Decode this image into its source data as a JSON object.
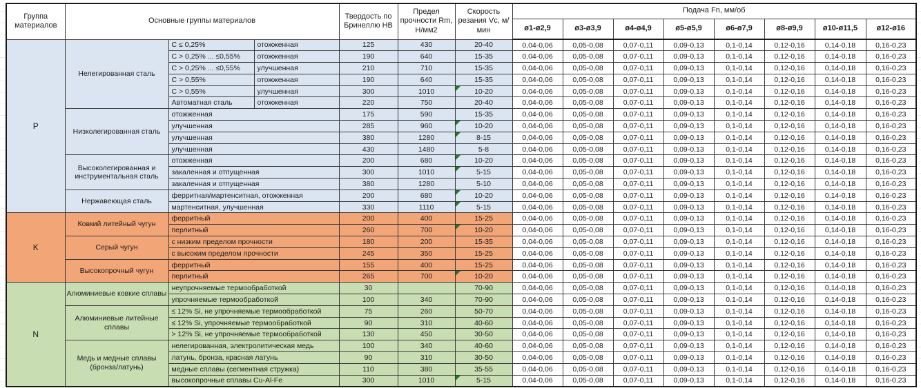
{
  "header": {
    "col_group": "Группа материалов",
    "col_main": "Основные группы материалов",
    "col_hb": "Твердость по Бринеллю HB",
    "col_rm": "Предел прочности Rm, Н/мм2",
    "col_vc": "Скорость резания Vc, м/мин",
    "col_feed": "Подача Fn, мм/об",
    "diameters": [
      "ø1-ø2,9",
      "ø3-ø3,9",
      "ø4-ø4,9",
      "ø5-ø5,9",
      "ø6-ø7,9",
      "ø8-ø9,9",
      "ø10-ø11,5",
      "ø12-ø16"
    ]
  },
  "feed_values_all_rows": [
    "0,04-0,06",
    "0,05-0,08",
    "0,07-0,11",
    "0,09-0,13",
    "0,1-0,14",
    "0,12-0,16",
    "0,14-0,18",
    "0,16-0,23"
  ],
  "colors": {
    "group_p": "#dbe5f2",
    "group_k": "#f2a577",
    "group_n": "#c9ddb2",
    "feed_cells": "#ffffff",
    "error_marker": "#1e7a22"
  },
  "groups": [
    {
      "code": "P",
      "color": "p",
      "families": [
        {
          "name": "Нелегированная сталь",
          "rows": [
            {
              "sub": "C ≤ 0,25%",
              "state": "отожженная",
              "hb": "125",
              "rm": "430",
              "vc": "20-40",
              "mark": false
            },
            {
              "sub": "C > 0,25% ... ≤0,55%",
              "state": "отожженная",
              "hb": "190",
              "rm": "640",
              "vc": "15-35",
              "mark": false
            },
            {
              "sub": "C > 0,25% ... ≤0,55%",
              "state": "улучшенная",
              "hb": "210",
              "rm": "710",
              "vc": "15-35",
              "mark": false
            },
            {
              "sub": "C > 0,55%",
              "state": "отожженная",
              "hb": "190",
              "rm": "640",
              "vc": "15-35",
              "mark": false
            },
            {
              "sub": "C > 0,55%",
              "state": "улучшенная",
              "hb": "300",
              "rm": "1010",
              "vc": "10-20",
              "mark": true
            },
            {
              "sub": "Автоматная сталь",
              "state": "отожженная",
              "hb": "220",
              "rm": "750",
              "vc": "20-40",
              "mark": false
            }
          ]
        },
        {
          "name": "Низколегированная сталь",
          "rows": [
            {
              "sub": "отожженная",
              "hb": "175",
              "rm": "590",
              "vc": "15-35",
              "mark": false
            },
            {
              "sub": "улучшенная",
              "hb": "285",
              "rm": "960",
              "vc": "10-20",
              "mark": true
            },
            {
              "sub": "улучшенная",
              "hb": "380",
              "rm": "1280",
              "vc": "8-15",
              "mark": true
            },
            {
              "sub": "улучшенная",
              "hb": "430",
              "rm": "1480",
              "vc": "5-8",
              "mark": false
            }
          ]
        },
        {
          "name": "Высоколегированная и инструментальная сталь",
          "rows": [
            {
              "sub": "отожженная",
              "hb": "200",
              "rm": "680",
              "vc": "10-20",
              "mark": true
            },
            {
              "sub": "закаленная и отпущенная",
              "hb": "300",
              "rm": "1010",
              "vc": "5-15",
              "mark": true
            },
            {
              "sub": "закаленная и отпущенная",
              "hb": "380",
              "rm": "1280",
              "vc": "5-10",
              "mark": false
            }
          ]
        },
        {
          "name": "Нержавеющая сталь",
          "rows": [
            {
              "sub": "ферритная/мартенситная, отожженная",
              "hb": "200",
              "rm": "680",
              "vc": "10-20",
              "mark": true
            },
            {
              "sub": "мартенситная, улучшенная",
              "hb": "330",
              "rm": "1110",
              "vc": "5-15",
              "mark": true
            }
          ]
        }
      ]
    },
    {
      "code": "K",
      "color": "k",
      "families": [
        {
          "name": "Ковкий литейный чугун",
          "rows": [
            {
              "sub": "ферритный",
              "hb": "200",
              "rm": "400",
              "vc": "15-25",
              "mark": false
            },
            {
              "sub": "перлитный",
              "hb": "260",
              "rm": "700",
              "vc": "10-20",
              "mark": true
            }
          ]
        },
        {
          "name": "Серый чугун",
          "rows": [
            {
              "sub": "с низким пределом прочности",
              "hb": "180",
              "rm": "200",
              "vc": "15-35",
              "mark": false
            },
            {
              "sub": "с высоким пределом прочности",
              "hb": "245",
              "rm": "350",
              "vc": "15-25",
              "mark": false
            }
          ]
        },
        {
          "name": "Высокопрочный чугун",
          "rows": [
            {
              "sub": "ферритный",
              "hb": "155",
              "rm": "400",
              "vc": "15-25",
              "mark": false
            },
            {
              "sub": "перлитный",
              "hb": "265",
              "rm": "700",
              "vc": "10-20",
              "mark": true
            }
          ]
        }
      ]
    },
    {
      "code": "N",
      "color": "n",
      "families": [
        {
          "name": "Алюминиевые ковкие сплавы",
          "rows": [
            {
              "sub": "неупрочняемые термообработкой",
              "hb": "30",
              "rm": "",
              "vc": "70-90",
              "mark": false
            },
            {
              "sub": "упрочняемые термообработкой",
              "hb": "100",
              "rm": "340",
              "vc": "70-90",
              "mark": false
            }
          ]
        },
        {
          "name": "Алюминиевые литейные сплавы",
          "rows": [
            {
              "sub": "≤ 12% Si, не упрочняемые термообработкой",
              "hb": "75",
              "rm": "260",
              "vc": "50-70",
              "mark": false
            },
            {
              "sub": "≤ 12% Si, упрочняемые термообработкой",
              "hb": "90",
              "rm": "310",
              "vc": "40-60",
              "mark": false
            },
            {
              "sub": "> 12% Si, не упрочняемые термообработкой",
              "hb": "130",
              "rm": "450",
              "vc": "30-50",
              "mark": false
            }
          ]
        },
        {
          "name": "Медь и медные сплавы (бронза/латунь)",
          "rows": [
            {
              "sub": "нелегированная, электролитическая медь",
              "hb": "100",
              "rm": "340",
              "vc": "40-60",
              "mark": false
            },
            {
              "sub": "латунь, бронза, красная латунь",
              "hb": "90",
              "rm": "310",
              "vc": "30-50",
              "mark": false
            },
            {
              "sub": "медные сплавы (сегментная стружка)",
              "hb": "110",
              "rm": "380",
              "vc": "35-55",
              "mark": false
            },
            {
              "sub": "высокопрочные сплавы Cu-Al-Fe",
              "hb": "300",
              "rm": "1010",
              "vc": "5-15",
              "mark": true
            }
          ]
        }
      ]
    }
  ]
}
